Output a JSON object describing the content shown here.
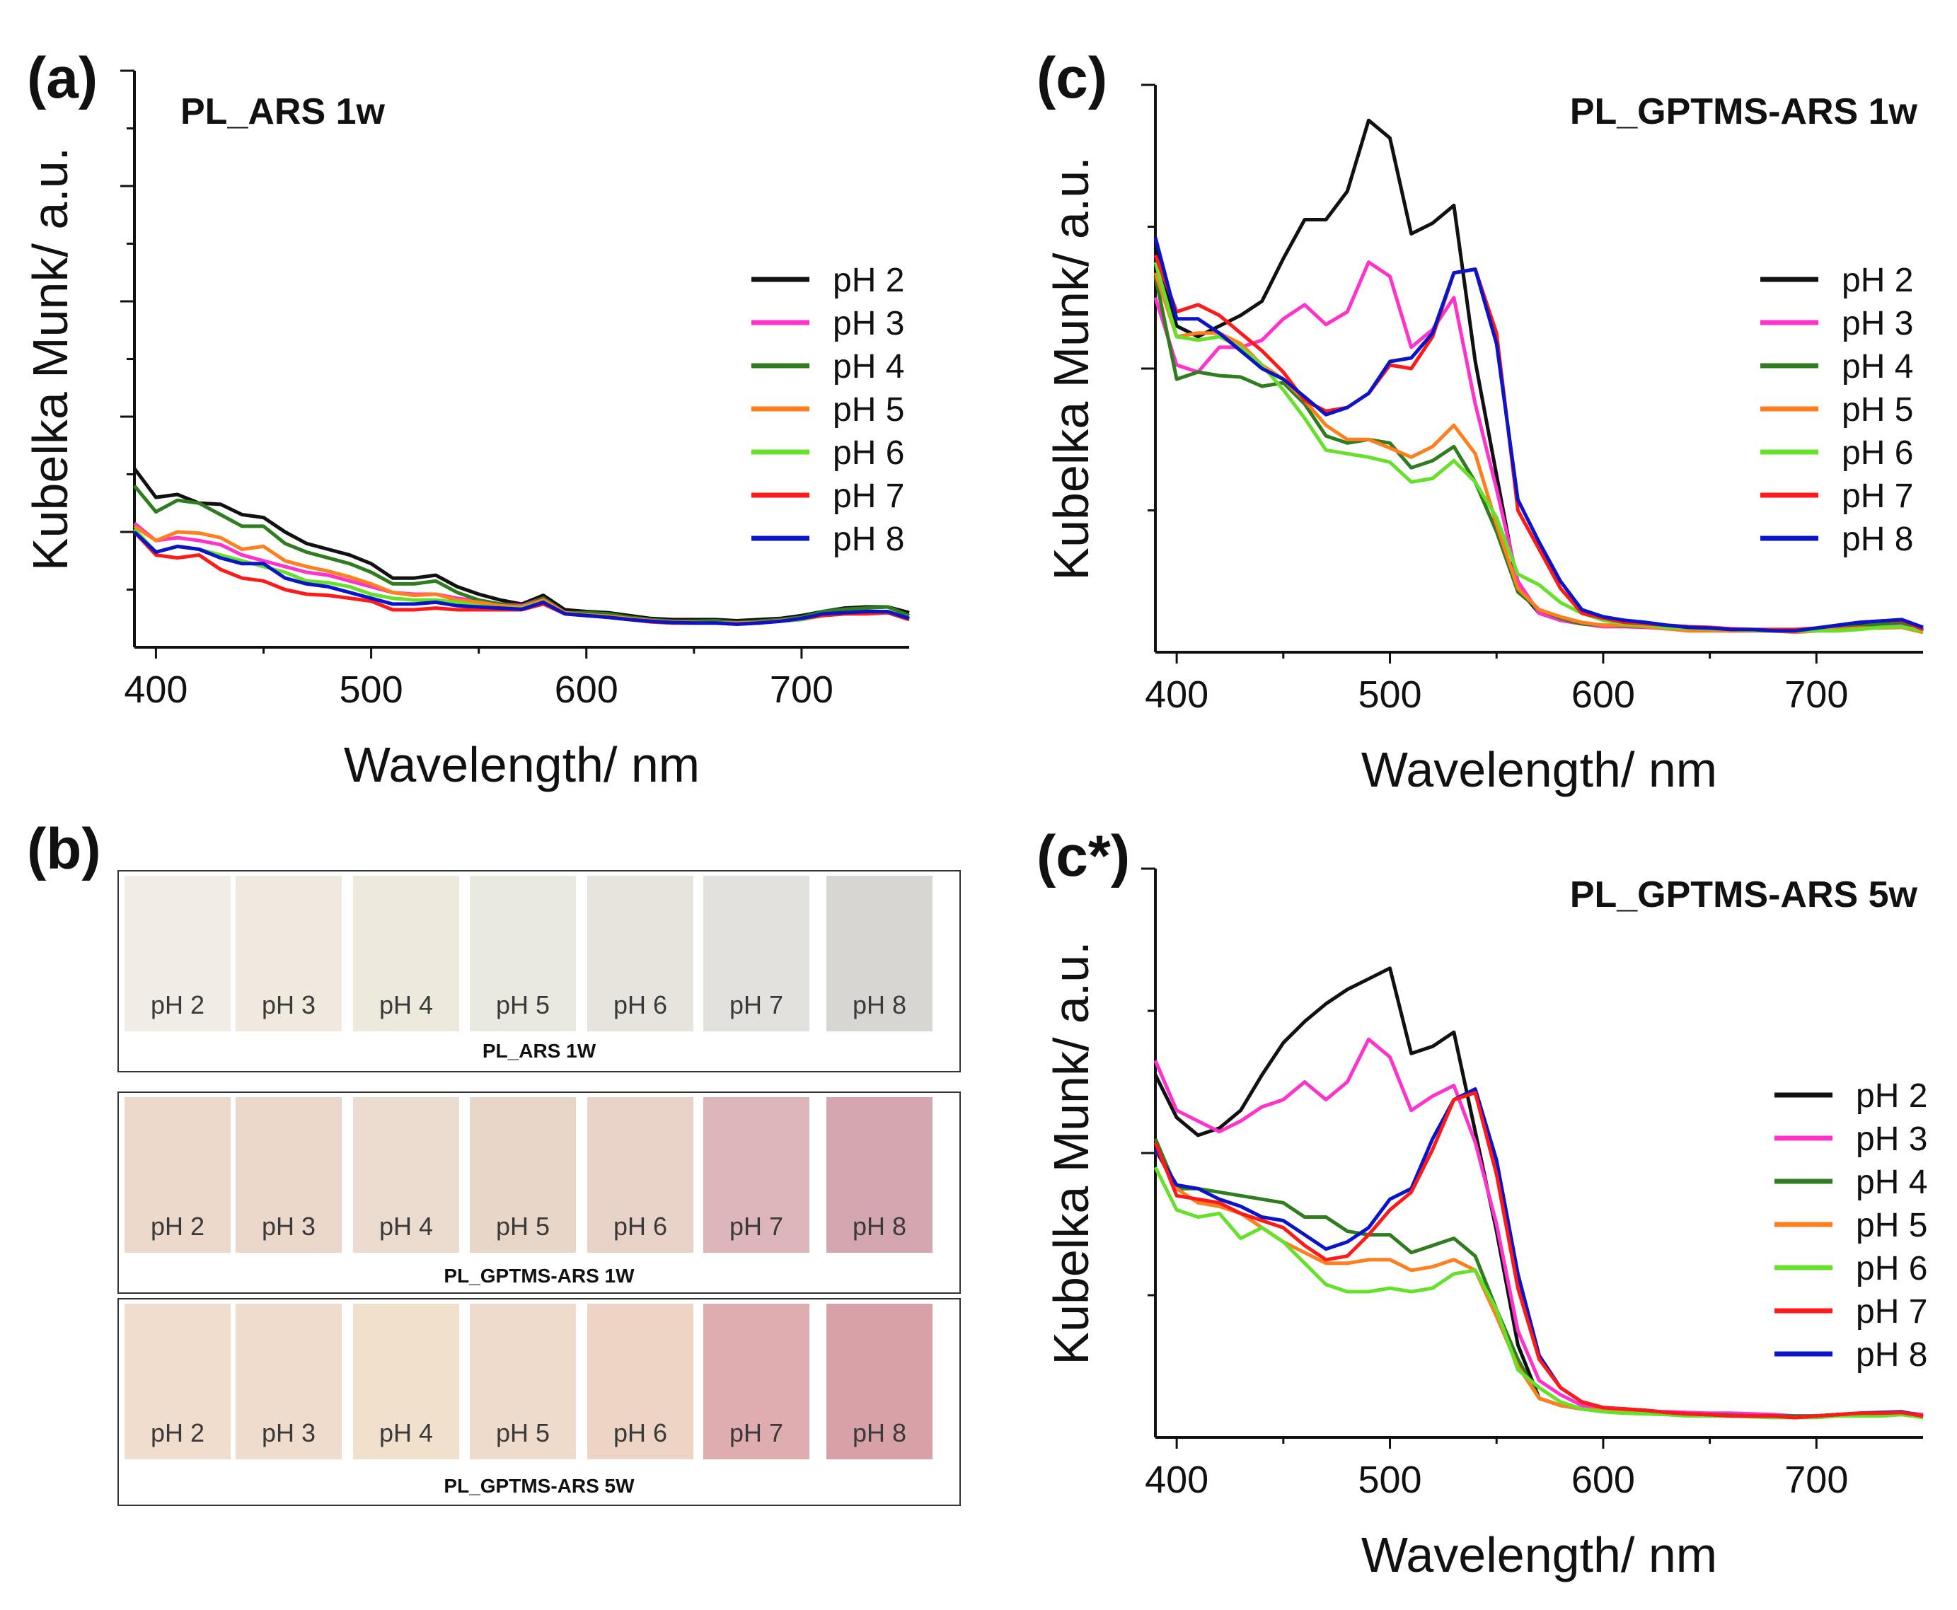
{
  "panel_labels": {
    "a": "(a)",
    "b": "(b)",
    "c": "(c)",
    "cstar": "(c*)"
  },
  "series_colors": {
    "pH 2": "#111111",
    "pH 3": "#ff33cc",
    "pH 4": "#2e7d1e",
    "pH 5": "#ff7f1e",
    "pH 6": "#66e02a",
    "pH 7": "#ff1a1a",
    "pH 8": "#0a14c8"
  },
  "swatch_groups": [
    {
      "caption": "PL_ARS 1W",
      "labels": [
        "pH 2",
        "pH 3",
        "pH 4",
        "pH 5",
        "pH 6",
        "pH 7",
        "pH 8"
      ],
      "colors": [
        "#f1ede6",
        "#f0e9df",
        "#eee9dd",
        "#eae9df",
        "#e6e4dc",
        "#e2e1de",
        "#d8d6d3"
      ]
    },
    {
      "caption": "PL_GPTMS-ARS 1W",
      "labels": [
        "pH 2",
        "pH 3",
        "pH 4",
        "pH 5",
        "pH 6",
        "pH 7",
        "pH 8"
      ],
      "colors": [
        "#ecd9cc",
        "#ecd8cb",
        "#ecdccf",
        "#e8d6c9",
        "#e9d2c8",
        "#dcb6b8",
        "#d4a7b0"
      ]
    },
    {
      "caption": "PL_GPTMS-ARS 5W",
      "labels": [
        "pH 2",
        "pH 3",
        "pH 4",
        "pH 5",
        "pH 6",
        "pH 7",
        "pH 8"
      ],
      "colors": [
        "#f1ddce",
        "#f0dccc",
        "#f1e0cc",
        "#efdbcb",
        "#edd4c4",
        "#dfacaf",
        "#d7a1a7"
      ]
    }
  ],
  "chart_data": [
    {
      "id": "a",
      "type": "line",
      "title": "PL_ARS 1w",
      "xlabel": "Wavelength/ nm",
      "ylabel": "Kubelka Munk/ a.u.",
      "xlim": [
        390,
        750
      ],
      "ylim": [
        0,
        10
      ],
      "xticks": [
        400,
        500,
        600,
        700
      ],
      "yticks_major": [
        2,
        4,
        6,
        8,
        10
      ],
      "yticks_minor": [
        1,
        3,
        5,
        7,
        9
      ],
      "legend_position": "right",
      "x": [
        390,
        400,
        410,
        420,
        430,
        440,
        450,
        460,
        470,
        480,
        490,
        500,
        510,
        520,
        530,
        540,
        550,
        560,
        570,
        580,
        590,
        600,
        610,
        620,
        630,
        640,
        650,
        660,
        670,
        680,
        690,
        700,
        710,
        720,
        730,
        740,
        750
      ],
      "series": [
        {
          "name": "pH 2",
          "values": [
            3.1,
            2.6,
            2.65,
            2.5,
            2.48,
            2.3,
            2.25,
            2.0,
            1.8,
            1.7,
            1.6,
            1.45,
            1.2,
            1.2,
            1.25,
            1.05,
            0.92,
            0.82,
            0.75,
            0.9,
            0.65,
            0.62,
            0.6,
            0.55,
            0.5,
            0.48,
            0.48,
            0.48,
            0.46,
            0.48,
            0.5,
            0.55,
            0.62,
            0.68,
            0.7,
            0.7,
            0.6
          ]
        },
        {
          "name": "pH 3",
          "values": [
            2.15,
            1.85,
            1.9,
            1.85,
            1.78,
            1.6,
            1.5,
            1.4,
            1.3,
            1.25,
            1.15,
            1.05,
            0.95,
            0.92,
            0.92,
            0.85,
            0.8,
            0.75,
            0.72,
            0.85,
            0.6,
            0.57,
            0.55,
            0.5,
            0.46,
            0.44,
            0.43,
            0.42,
            0.42,
            0.42,
            0.45,
            0.48,
            0.55,
            0.58,
            0.6,
            0.6,
            0.5
          ]
        },
        {
          "name": "pH 4",
          "values": [
            2.8,
            2.35,
            2.55,
            2.5,
            2.3,
            2.1,
            2.1,
            1.8,
            1.65,
            1.55,
            1.45,
            1.3,
            1.1,
            1.1,
            1.15,
            0.95,
            0.82,
            0.75,
            0.7,
            0.85,
            0.6,
            0.6,
            0.58,
            0.52,
            0.48,
            0.45,
            0.45,
            0.46,
            0.43,
            0.45,
            0.48,
            0.52,
            0.62,
            0.66,
            0.68,
            0.7,
            0.55
          ]
        },
        {
          "name": "pH 5",
          "values": [
            2.1,
            1.85,
            2.0,
            1.98,
            1.9,
            1.7,
            1.75,
            1.5,
            1.4,
            1.32,
            1.22,
            1.1,
            0.95,
            0.9,
            0.92,
            0.82,
            0.78,
            0.72,
            0.7,
            0.82,
            0.6,
            0.56,
            0.54,
            0.5,
            0.46,
            0.44,
            0.43,
            0.42,
            0.42,
            0.43,
            0.46,
            0.5,
            0.56,
            0.6,
            0.62,
            0.62,
            0.5
          ]
        },
        {
          "name": "pH 6",
          "values": [
            2.05,
            1.65,
            1.75,
            1.7,
            1.6,
            1.5,
            1.4,
            1.3,
            1.15,
            1.12,
            1.05,
            0.92,
            0.85,
            0.82,
            0.82,
            0.78,
            0.72,
            0.68,
            0.68,
            0.78,
            0.58,
            0.55,
            0.52,
            0.48,
            0.44,
            0.42,
            0.42,
            0.42,
            0.4,
            0.42,
            0.45,
            0.48,
            0.55,
            0.58,
            0.58,
            0.6,
            0.48
          ]
        },
        {
          "name": "pH 7",
          "values": [
            2.0,
            1.6,
            1.55,
            1.6,
            1.35,
            1.2,
            1.15,
            1.0,
            0.92,
            0.9,
            0.85,
            0.8,
            0.65,
            0.65,
            0.68,
            0.65,
            0.65,
            0.65,
            0.65,
            0.75,
            0.58,
            0.55,
            0.52,
            0.48,
            0.44,
            0.42,
            0.42,
            0.42,
            0.4,
            0.42,
            0.45,
            0.5,
            0.55,
            0.58,
            0.58,
            0.6,
            0.48
          ]
        },
        {
          "name": "pH 8",
          "values": [
            2.0,
            1.65,
            1.75,
            1.7,
            1.55,
            1.45,
            1.45,
            1.2,
            1.1,
            1.05,
            0.95,
            0.85,
            0.75,
            0.75,
            0.78,
            0.72,
            0.7,
            0.68,
            0.66,
            0.78,
            0.58,
            0.55,
            0.52,
            0.48,
            0.45,
            0.43,
            0.42,
            0.42,
            0.4,
            0.42,
            0.45,
            0.5,
            0.58,
            0.6,
            0.62,
            0.62,
            0.5
          ]
        }
      ]
    },
    {
      "id": "c",
      "type": "line",
      "title": "PL_GPTMS-ARS 1w",
      "xlabel": "Wavelength/ nm",
      "ylabel": "Kubelka Munk/ a.u.",
      "xlim": [
        390,
        750
      ],
      "ylim": [
        0,
        8
      ],
      "xticks": [
        400,
        500,
        600,
        700
      ],
      "yticks_major": [
        4,
        8
      ],
      "yticks_minor": [
        2,
        6
      ],
      "legend_position": "right",
      "x": [
        390,
        400,
        410,
        420,
        430,
        440,
        450,
        460,
        470,
        480,
        490,
        500,
        510,
        520,
        530,
        540,
        550,
        560,
        570,
        580,
        590,
        600,
        610,
        620,
        630,
        640,
        650,
        660,
        670,
        680,
        690,
        700,
        710,
        720,
        730,
        740,
        750
      ],
      "series": [
        {
          "name": "pH 2",
          "values": [
            5.7,
            4.6,
            4.45,
            4.6,
            4.75,
            4.95,
            5.55,
            6.1,
            6.1,
            6.5,
            7.5,
            7.25,
            5.9,
            6.05,
            6.3,
            4.1,
            2.5,
            0.9,
            0.55,
            0.45,
            0.4,
            0.38,
            0.38,
            0.36,
            0.34,
            0.32,
            0.32,
            0.3,
            0.3,
            0.3,
            0.3,
            0.32,
            0.36,
            0.38,
            0.42,
            0.45,
            0.3
          ]
        },
        {
          "name": "pH 3",
          "values": [
            5.0,
            4.05,
            3.95,
            4.3,
            4.3,
            4.4,
            4.7,
            4.9,
            4.62,
            4.8,
            5.5,
            5.3,
            4.3,
            4.55,
            5.0,
            3.5,
            2.3,
            1.0,
            0.55,
            0.45,
            0.4,
            0.36,
            0.36,
            0.35,
            0.33,
            0.32,
            0.31,
            0.3,
            0.3,
            0.3,
            0.3,
            0.32,
            0.34,
            0.36,
            0.38,
            0.4,
            0.3
          ]
        },
        {
          "name": "pH 4",
          "values": [
            5.3,
            3.85,
            3.95,
            3.9,
            3.88,
            3.75,
            3.8,
            3.5,
            3.05,
            2.95,
            3.0,
            2.95,
            2.6,
            2.7,
            2.9,
            2.4,
            1.7,
            0.85,
            0.6,
            0.48,
            0.4,
            0.38,
            0.37,
            0.36,
            0.35,
            0.33,
            0.32,
            0.32,
            0.3,
            0.3,
            0.3,
            0.32,
            0.34,
            0.36,
            0.4,
            0.42,
            0.3
          ]
        },
        {
          "name": "pH 5",
          "values": [
            5.35,
            4.45,
            4.5,
            4.5,
            4.35,
            4.05,
            3.85,
            3.55,
            3.2,
            3.0,
            3.0,
            2.88,
            2.75,
            2.9,
            3.2,
            2.8,
            1.8,
            0.9,
            0.6,
            0.5,
            0.42,
            0.38,
            0.38,
            0.36,
            0.33,
            0.3,
            0.3,
            0.3,
            0.3,
            0.3,
            0.28,
            0.3,
            0.32,
            0.34,
            0.34,
            0.35,
            0.28
          ]
        },
        {
          "name": "pH 6",
          "values": [
            5.5,
            4.45,
            4.4,
            4.45,
            4.3,
            4.05,
            3.7,
            3.3,
            2.85,
            2.8,
            2.75,
            2.68,
            2.4,
            2.45,
            2.7,
            2.4,
            1.9,
            1.1,
            0.95,
            0.7,
            0.55,
            0.45,
            0.4,
            0.38,
            0.35,
            0.34,
            0.33,
            0.32,
            0.31,
            0.3,
            0.3,
            0.3,
            0.3,
            0.32,
            0.35,
            0.36,
            0.3
          ]
        },
        {
          "name": "pH 7",
          "values": [
            5.6,
            4.8,
            4.9,
            4.75,
            4.5,
            4.25,
            3.95,
            3.55,
            3.4,
            3.45,
            3.65,
            4.05,
            4.0,
            4.45,
            5.35,
            5.4,
            4.5,
            2.0,
            1.45,
            0.9,
            0.55,
            0.48,
            0.42,
            0.4,
            0.38,
            0.36,
            0.35,
            0.33,
            0.32,
            0.32,
            0.32,
            0.34,
            0.38,
            0.42,
            0.44,
            0.45,
            0.32
          ]
        },
        {
          "name": "pH 8",
          "values": [
            5.85,
            4.7,
            4.7,
            4.5,
            4.25,
            4.0,
            3.85,
            3.6,
            3.35,
            3.45,
            3.65,
            4.1,
            4.15,
            4.5,
            5.35,
            5.4,
            4.35,
            2.15,
            1.55,
            1.0,
            0.6,
            0.5,
            0.45,
            0.42,
            0.38,
            0.35,
            0.34,
            0.32,
            0.32,
            0.3,
            0.3,
            0.34,
            0.38,
            0.42,
            0.44,
            0.46,
            0.35
          ]
        }
      ]
    },
    {
      "id": "cstar",
      "type": "line",
      "title": "PL_GPTMS-ARS 5w",
      "xlabel": "Wavelength/ nm",
      "ylabel": "Kubelka Munk/ a.u.",
      "xlim": [
        390,
        750
      ],
      "ylim": [
        0,
        8
      ],
      "xticks": [
        400,
        500,
        600,
        700
      ],
      "yticks_major": [
        4,
        8
      ],
      "yticks_minor": [
        2,
        6
      ],
      "legend_position": "right",
      "x": [
        390,
        400,
        410,
        420,
        430,
        440,
        450,
        460,
        470,
        480,
        490,
        500,
        510,
        520,
        530,
        540,
        550,
        560,
        570,
        580,
        590,
        600,
        610,
        620,
        630,
        640,
        650,
        660,
        670,
        680,
        690,
        700,
        710,
        720,
        730,
        740,
        750
      ],
      "series": [
        {
          "name": "pH 2",
          "values": [
            5.1,
            4.5,
            4.25,
            4.35,
            4.6,
            5.1,
            5.55,
            5.85,
            6.1,
            6.3,
            6.45,
            6.6,
            5.4,
            5.5,
            5.7,
            4.3,
            2.9,
            1.3,
            0.55,
            0.45,
            0.4,
            0.38,
            0.36,
            0.35,
            0.34,
            0.32,
            0.32,
            0.32,
            0.3,
            0.3,
            0.28,
            0.3,
            0.32,
            0.32,
            0.32,
            0.35,
            0.3
          ]
        },
        {
          "name": "pH 3",
          "values": [
            5.3,
            4.6,
            4.45,
            4.3,
            4.45,
            4.65,
            4.75,
            5.0,
            4.75,
            5.0,
            5.6,
            5.35,
            4.6,
            4.8,
            4.95,
            4.15,
            3.0,
            1.5,
            0.8,
            0.6,
            0.45,
            0.4,
            0.38,
            0.36,
            0.36,
            0.35,
            0.34,
            0.34,
            0.33,
            0.32,
            0.3,
            0.3,
            0.32,
            0.32,
            0.34,
            0.35,
            0.32
          ]
        },
        {
          "name": "pH 4",
          "values": [
            4.2,
            3.5,
            3.5,
            3.45,
            3.4,
            3.35,
            3.3,
            3.1,
            3.1,
            2.9,
            2.85,
            2.85,
            2.6,
            2.7,
            2.8,
            2.55,
            1.8,
            1.1,
            0.55,
            0.45,
            0.4,
            0.38,
            0.36,
            0.35,
            0.33,
            0.32,
            0.32,
            0.31,
            0.3,
            0.3,
            0.3,
            0.3,
            0.32,
            0.32,
            0.33,
            0.34,
            0.3
          ]
        },
        {
          "name": "pH 5",
          "values": [
            4.05,
            3.5,
            3.3,
            3.25,
            3.15,
            2.95,
            2.75,
            2.6,
            2.45,
            2.45,
            2.5,
            2.5,
            2.35,
            2.4,
            2.5,
            2.35,
            1.7,
            1.0,
            0.55,
            0.45,
            0.4,
            0.38,
            0.36,
            0.35,
            0.33,
            0.32,
            0.3,
            0.3,
            0.3,
            0.3,
            0.28,
            0.3,
            0.3,
            0.32,
            0.32,
            0.34,
            0.28
          ]
        },
        {
          "name": "pH 6",
          "values": [
            3.8,
            3.2,
            3.1,
            3.15,
            2.8,
            2.95,
            2.75,
            2.45,
            2.15,
            2.05,
            2.05,
            2.1,
            2.05,
            2.1,
            2.3,
            2.35,
            1.8,
            0.95,
            0.7,
            0.5,
            0.4,
            0.36,
            0.34,
            0.33,
            0.32,
            0.3,
            0.3,
            0.3,
            0.29,
            0.28,
            0.28,
            0.28,
            0.3,
            0.3,
            0.3,
            0.32,
            0.28
          ]
        },
        {
          "name": "pH 8",
          "values": [
            4.05,
            3.55,
            3.5,
            3.35,
            3.25,
            3.1,
            3.05,
            2.85,
            2.65,
            2.75,
            2.95,
            3.35,
            3.5,
            4.2,
            4.75,
            4.9,
            3.9,
            2.3,
            1.15,
            0.7,
            0.5,
            0.42,
            0.4,
            0.38,
            0.35,
            0.33,
            0.32,
            0.3,
            0.3,
            0.3,
            0.28,
            0.3,
            0.32,
            0.34,
            0.35,
            0.36,
            0.3
          ]
        },
        {
          "name": "pH 7",
          "values": [
            4.15,
            3.4,
            3.35,
            3.3,
            3.15,
            3.05,
            2.95,
            2.7,
            2.5,
            2.55,
            2.85,
            3.2,
            3.45,
            4.05,
            4.75,
            4.85,
            3.7,
            2.1,
            1.1,
            0.7,
            0.5,
            0.42,
            0.4,
            0.38,
            0.35,
            0.33,
            0.32,
            0.3,
            0.3,
            0.3,
            0.28,
            0.3,
            0.32,
            0.34,
            0.34,
            0.35,
            0.3
          ]
        }
      ]
    }
  ]
}
